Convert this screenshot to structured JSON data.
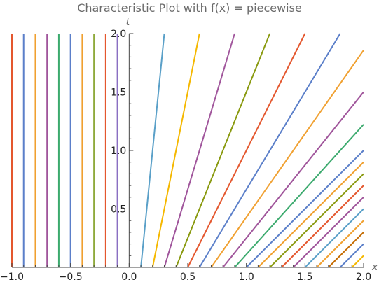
{
  "chart_data": {
    "type": "line",
    "title": "Characteristic Plot with f(x) = piecewise",
    "xlabel": "x",
    "ylabel": "t",
    "xlim": [
      -1.0,
      2.0
    ],
    "ylim": [
      0.0,
      2.0
    ],
    "x_ticks": [
      "−1.0",
      "−0.5",
      "0.0",
      "0.5",
      "1.0",
      "1.5",
      "2.0"
    ],
    "y_ticks": [
      "0.5",
      "1.0",
      "1.5",
      "2.0"
    ],
    "x_tick_values": [
      -1.0,
      -0.5,
      0.0,
      0.5,
      1.0,
      1.5,
      2.0
    ],
    "y_tick_values": [
      0.5,
      1.0,
      1.5,
      2.0
    ],
    "grid": false,
    "series": [
      {
        "x0": -1.0,
        "speed": 0.0,
        "color": "#e4572e"
      },
      {
        "x0": -0.9,
        "speed": 0.0,
        "color": "#5b7fc9"
      },
      {
        "x0": -0.8,
        "speed": 0.0,
        "color": "#f0a030"
      },
      {
        "x0": -0.7,
        "speed": 0.0,
        "color": "#a0559b"
      },
      {
        "x0": -0.6,
        "speed": 0.0,
        "color": "#3caa6e"
      },
      {
        "x0": -0.5,
        "speed": 0.0,
        "color": "#5b7fc9"
      },
      {
        "x0": -0.4,
        "speed": 0.0,
        "color": "#f0a030"
      },
      {
        "x0": -0.3,
        "speed": 0.0,
        "color": "#8faa3c"
      },
      {
        "x0": -0.2,
        "speed": 0.0,
        "color": "#e4572e"
      },
      {
        "x0": -0.1,
        "speed": 0.0,
        "color": "#8a6fc2"
      },
      {
        "x0": 0.1,
        "speed": 0.1,
        "color": "#5aa0c8"
      },
      {
        "x0": 0.2,
        "speed": 0.2,
        "color": "#f5b800"
      },
      {
        "x0": 0.3,
        "speed": 0.3,
        "color": "#a0559b"
      },
      {
        "x0": 0.4,
        "speed": 0.4,
        "color": "#8a9a10"
      },
      {
        "x0": 0.5,
        "speed": 0.5,
        "color": "#e4572e"
      },
      {
        "x0": 0.6,
        "speed": 0.6,
        "color": "#5b7fc9"
      },
      {
        "x0": 0.7,
        "speed": 0.7,
        "color": "#f0a030"
      },
      {
        "x0": 0.8,
        "speed": 0.8,
        "color": "#a0559b"
      },
      {
        "x0": 0.9,
        "speed": 0.9,
        "color": "#3caa6e"
      },
      {
        "x0": 1.0,
        "speed": 1.0,
        "color": "#5b7fc9"
      },
      {
        "x0": 1.1,
        "speed": 1.0,
        "color": "#f0a030"
      },
      {
        "x0": 1.2,
        "speed": 1.0,
        "color": "#8a9a10"
      },
      {
        "x0": 1.3,
        "speed": 1.0,
        "color": "#e4572e"
      },
      {
        "x0": 1.4,
        "speed": 1.0,
        "color": "#a0559b"
      },
      {
        "x0": 1.5,
        "speed": 1.0,
        "color": "#5aa0c8"
      },
      {
        "x0": 1.6,
        "speed": 1.0,
        "color": "#f0a030"
      },
      {
        "x0": 1.7,
        "speed": 1.0,
        "color": "#c46a00"
      },
      {
        "x0": 1.8,
        "speed": 1.0,
        "color": "#5b7fc9"
      },
      {
        "x0": 1.9,
        "speed": 1.0,
        "color": "#f5b800"
      }
    ]
  }
}
